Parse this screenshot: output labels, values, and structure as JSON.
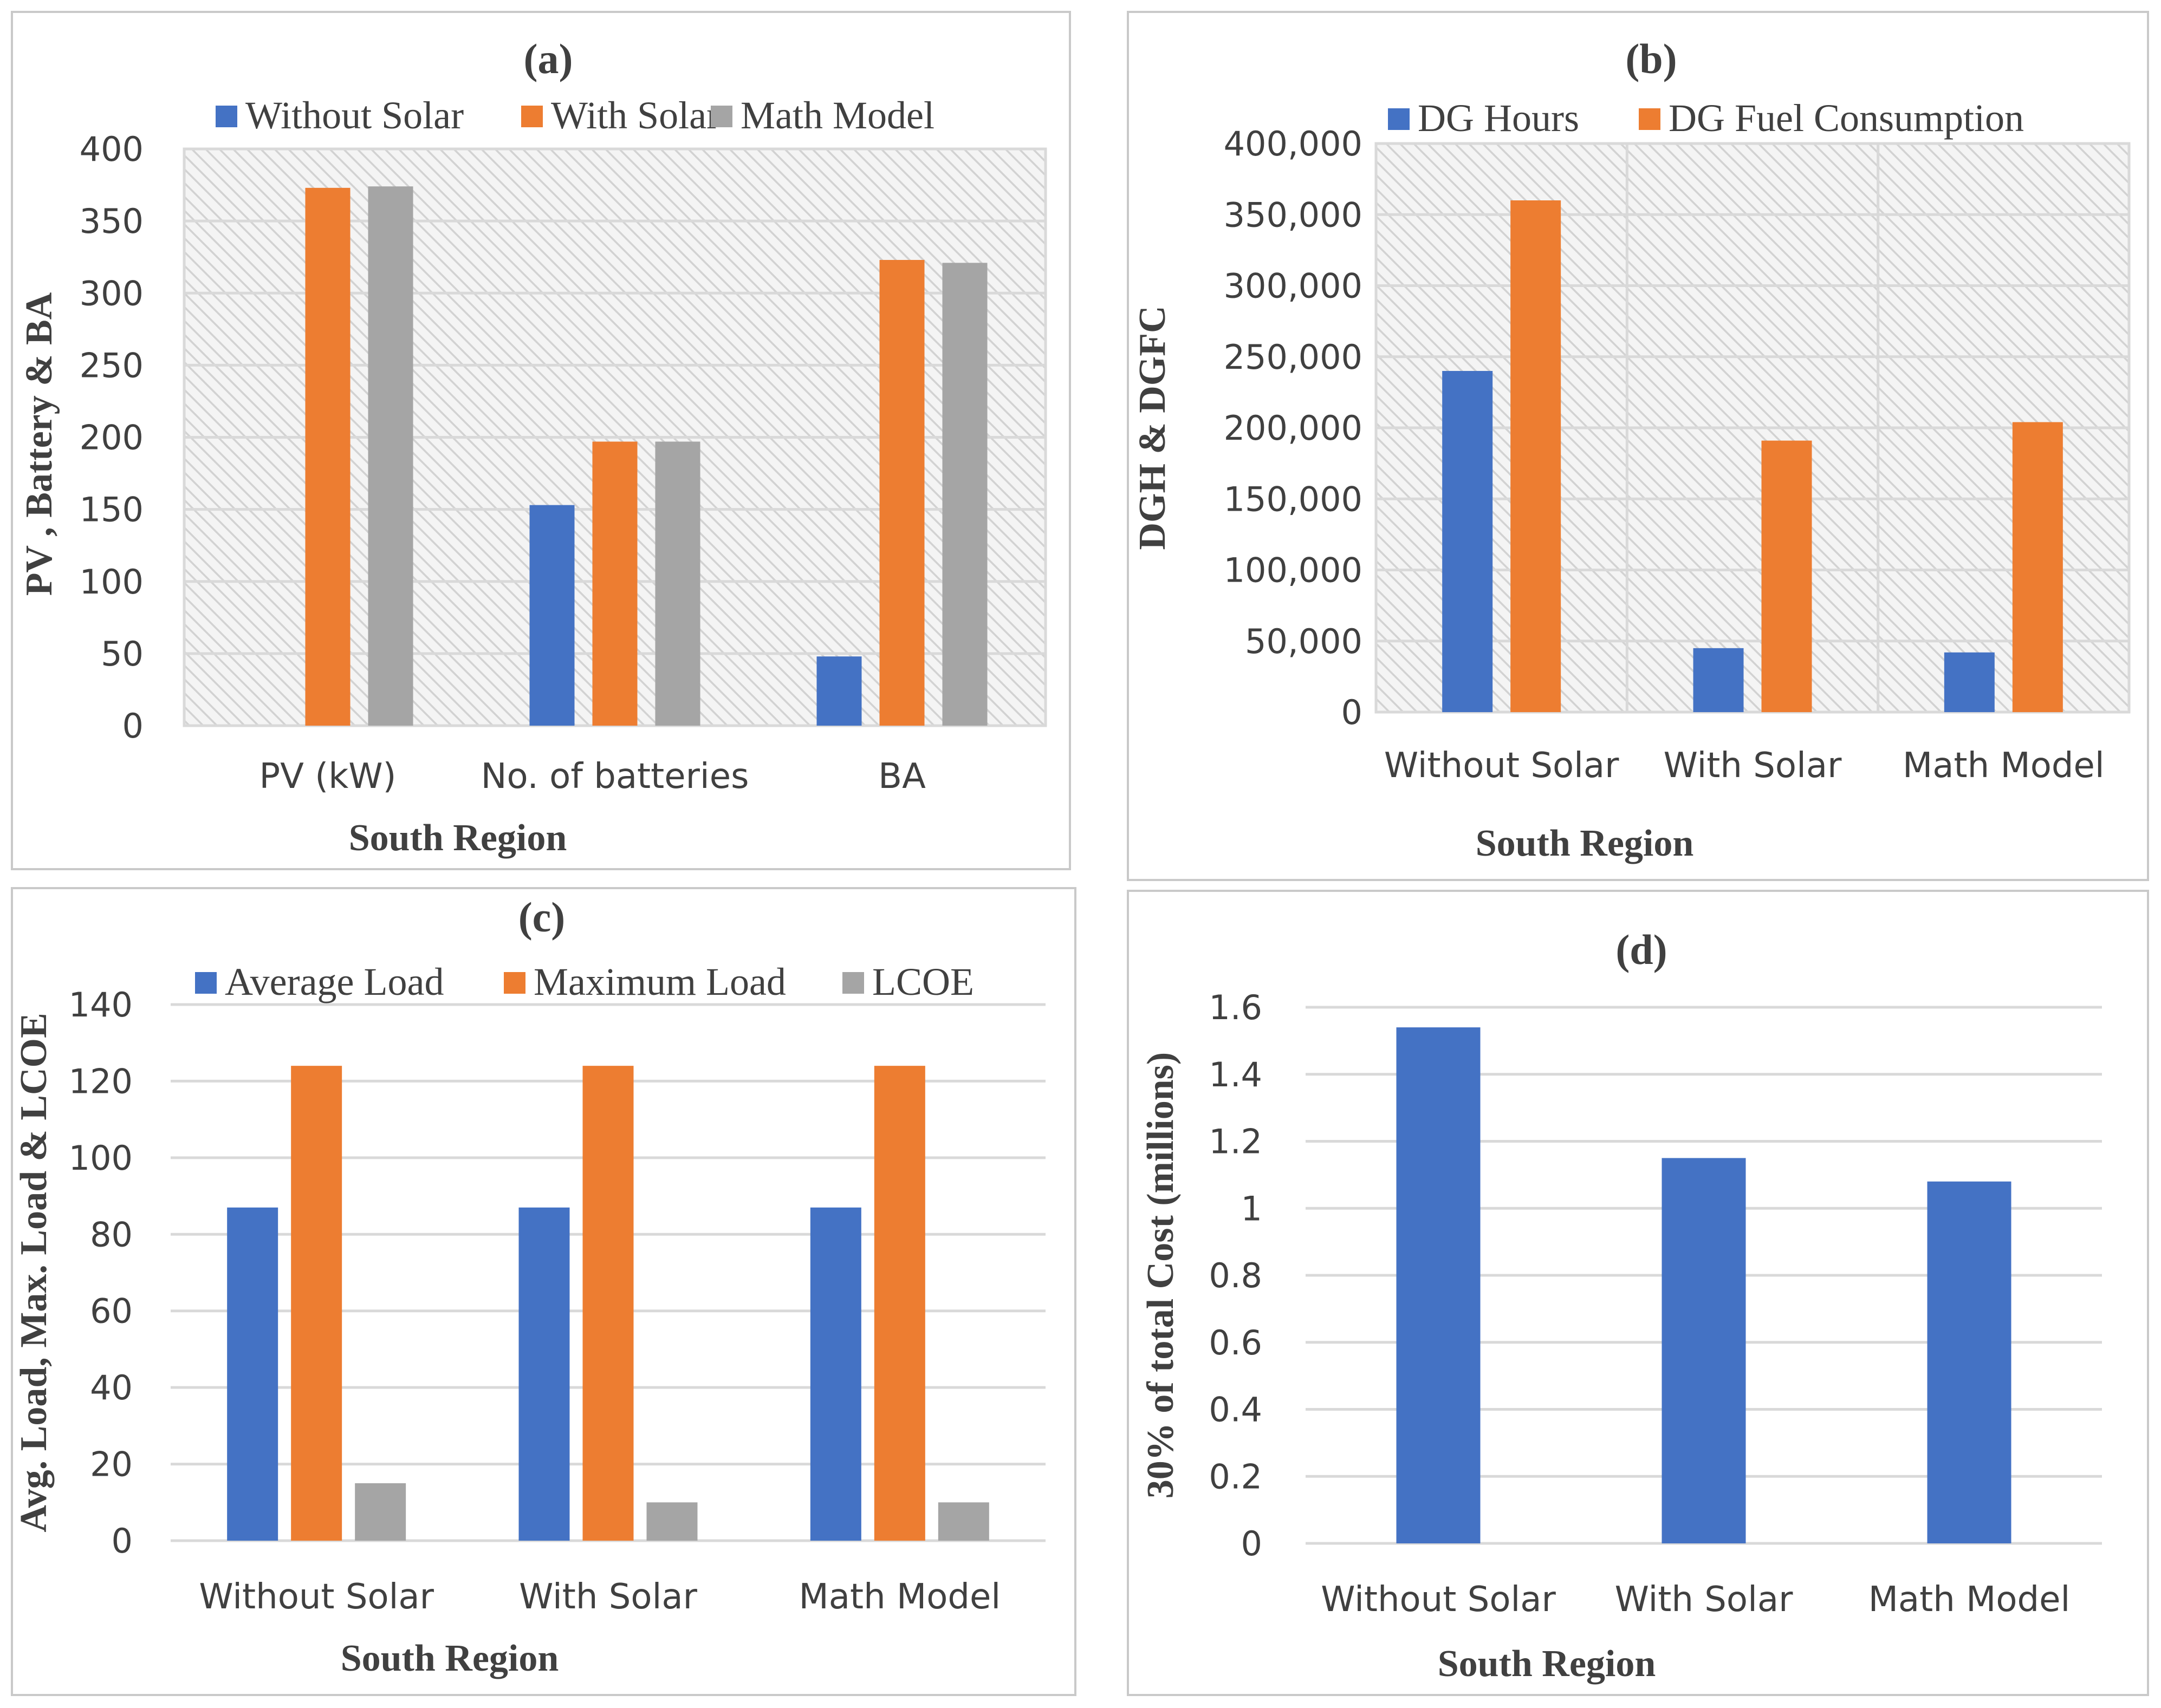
{
  "colors": {
    "blue": "#4472C4",
    "orange": "#ED7D31",
    "gray": "#A5A5A5",
    "grid": "#D9D9D9",
    "text": "#404040"
  },
  "chart_data": [
    {
      "panel": "(a)",
      "type": "bar",
      "categories": [
        "PV (kW)",
        "No. of batteries",
        "BA"
      ],
      "series": [
        {
          "name": "Without Solar",
          "values": [
            0,
            153,
            48
          ]
        },
        {
          "name": "With Solar",
          "values": [
            373,
            197,
            323
          ]
        },
        {
          "name": "Math Model",
          "values": [
            374,
            197,
            321
          ]
        }
      ],
      "xlabel": "South Region",
      "ylabel": "PV , Battery & BA",
      "ylim": [
        0,
        400
      ],
      "yticks": [
        "0",
        "50",
        "100",
        "150",
        "200",
        "250",
        "300",
        "350",
        "400"
      ],
      "legend": "top",
      "background": "hatched"
    },
    {
      "panel": "(b)",
      "type": "bar",
      "categories": [
        "Without Solar",
        "With Solar",
        "Math Model"
      ],
      "series": [
        {
          "name": "DG Hours",
          "values": [
            240000,
            45000,
            42000
          ]
        },
        {
          "name": "DG Fuel Consumption",
          "values": [
            360000,
            191000,
            204000
          ]
        }
      ],
      "xlabel": "South Region",
      "ylabel": "DGH & DGFC",
      "ylim": [
        0,
        400000
      ],
      "yticks": [
        "0",
        "50,000",
        "100,000",
        "150,000",
        "200,000",
        "250,000",
        "300,000",
        "350,000",
        "400,000"
      ],
      "legend": "top",
      "background": "hatched"
    },
    {
      "panel": "(c)",
      "type": "bar",
      "categories": [
        "Without Solar",
        "With Solar",
        "Math Model"
      ],
      "series": [
        {
          "name": "Average Load",
          "values": [
            87,
            87,
            87
          ]
        },
        {
          "name": "Maximum Load",
          "values": [
            124,
            124,
            124
          ]
        },
        {
          "name": "LCOE",
          "values": [
            15,
            10,
            10
          ]
        }
      ],
      "xlabel": "South Region",
      "ylabel": "Avg. Load, Max. Load & LCOE",
      "ylim": [
        0,
        140
      ],
      "yticks": [
        "0",
        "20",
        "40",
        "60",
        "80",
        "100",
        "120",
        "140"
      ],
      "legend": "top",
      "background": "plain"
    },
    {
      "panel": "(d)",
      "type": "bar",
      "categories": [
        "Without Solar",
        "With Solar",
        "Math Model"
      ],
      "series": [
        {
          "values": [
            1.54,
            1.15,
            1.08
          ]
        }
      ],
      "xlabel": "South Region",
      "ylabel": "30% of total Cost (millions)",
      "ylim": [
        0,
        1.6
      ],
      "yticks": [
        "0",
        "0.2",
        "0.4",
        "0.6",
        "0.8",
        "1",
        "1.2",
        "1.4",
        "1.6"
      ],
      "legend": "none",
      "background": "plain"
    }
  ]
}
